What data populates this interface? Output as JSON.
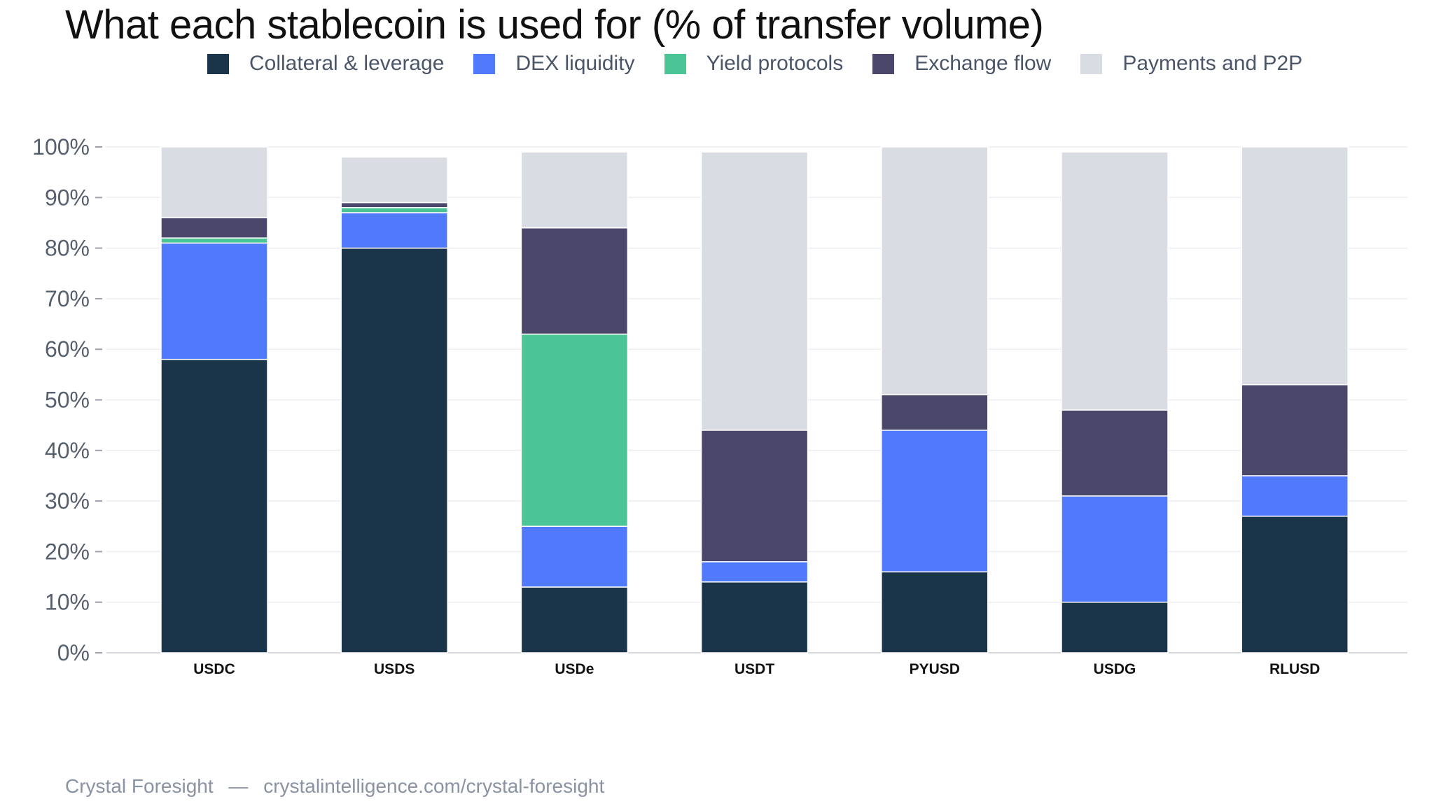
{
  "title": "What each stablecoin is used for (% of transfer volume)",
  "footer": {
    "source": "Crystal Foresight",
    "separator": "—",
    "url": "crystalintelligence.com/crystal-foresight"
  },
  "colors": {
    "collateral": "#1a3549",
    "dex": "#5079fc",
    "yield": "#4bc595",
    "exchange": "#4b476b",
    "payments": "#d9dde3",
    "grid": "#eceef1",
    "axis_text": "#555f6e"
  },
  "chart_data": {
    "type": "bar",
    "stacked": true,
    "categories": [
      "USDC",
      "USDS",
      "USDe",
      "USDT",
      "PYUSD",
      "USDG",
      "RLUSD"
    ],
    "series": [
      {
        "name": "Collateral & leverage",
        "color": "#1a3549",
        "values": [
          58,
          80,
          13,
          14,
          16,
          10,
          27
        ]
      },
      {
        "name": "DEX liquidity",
        "color": "#5079fc",
        "values": [
          23,
          7,
          12,
          4,
          28,
          21,
          8
        ]
      },
      {
        "name": "Yield protocols",
        "color": "#4bc595",
        "values": [
          1,
          1,
          38,
          0,
          0,
          0,
          0
        ]
      },
      {
        "name": "Exchange flow",
        "color": "#4b476b",
        "values": [
          4,
          1,
          21,
          26,
          7,
          17,
          18
        ]
      },
      {
        "name": "Payments and P2P",
        "color": "#d9dde3",
        "values": [
          14,
          9,
          15,
          55,
          49,
          51,
          47
        ]
      }
    ],
    "ylim": [
      0,
      100
    ],
    "yticks": [
      "0%",
      "10%",
      "20%",
      "30%",
      "40%",
      "50%",
      "60%",
      "70%",
      "80%",
      "90%",
      "100%"
    ],
    "legend_position": "top",
    "grid": true
  }
}
